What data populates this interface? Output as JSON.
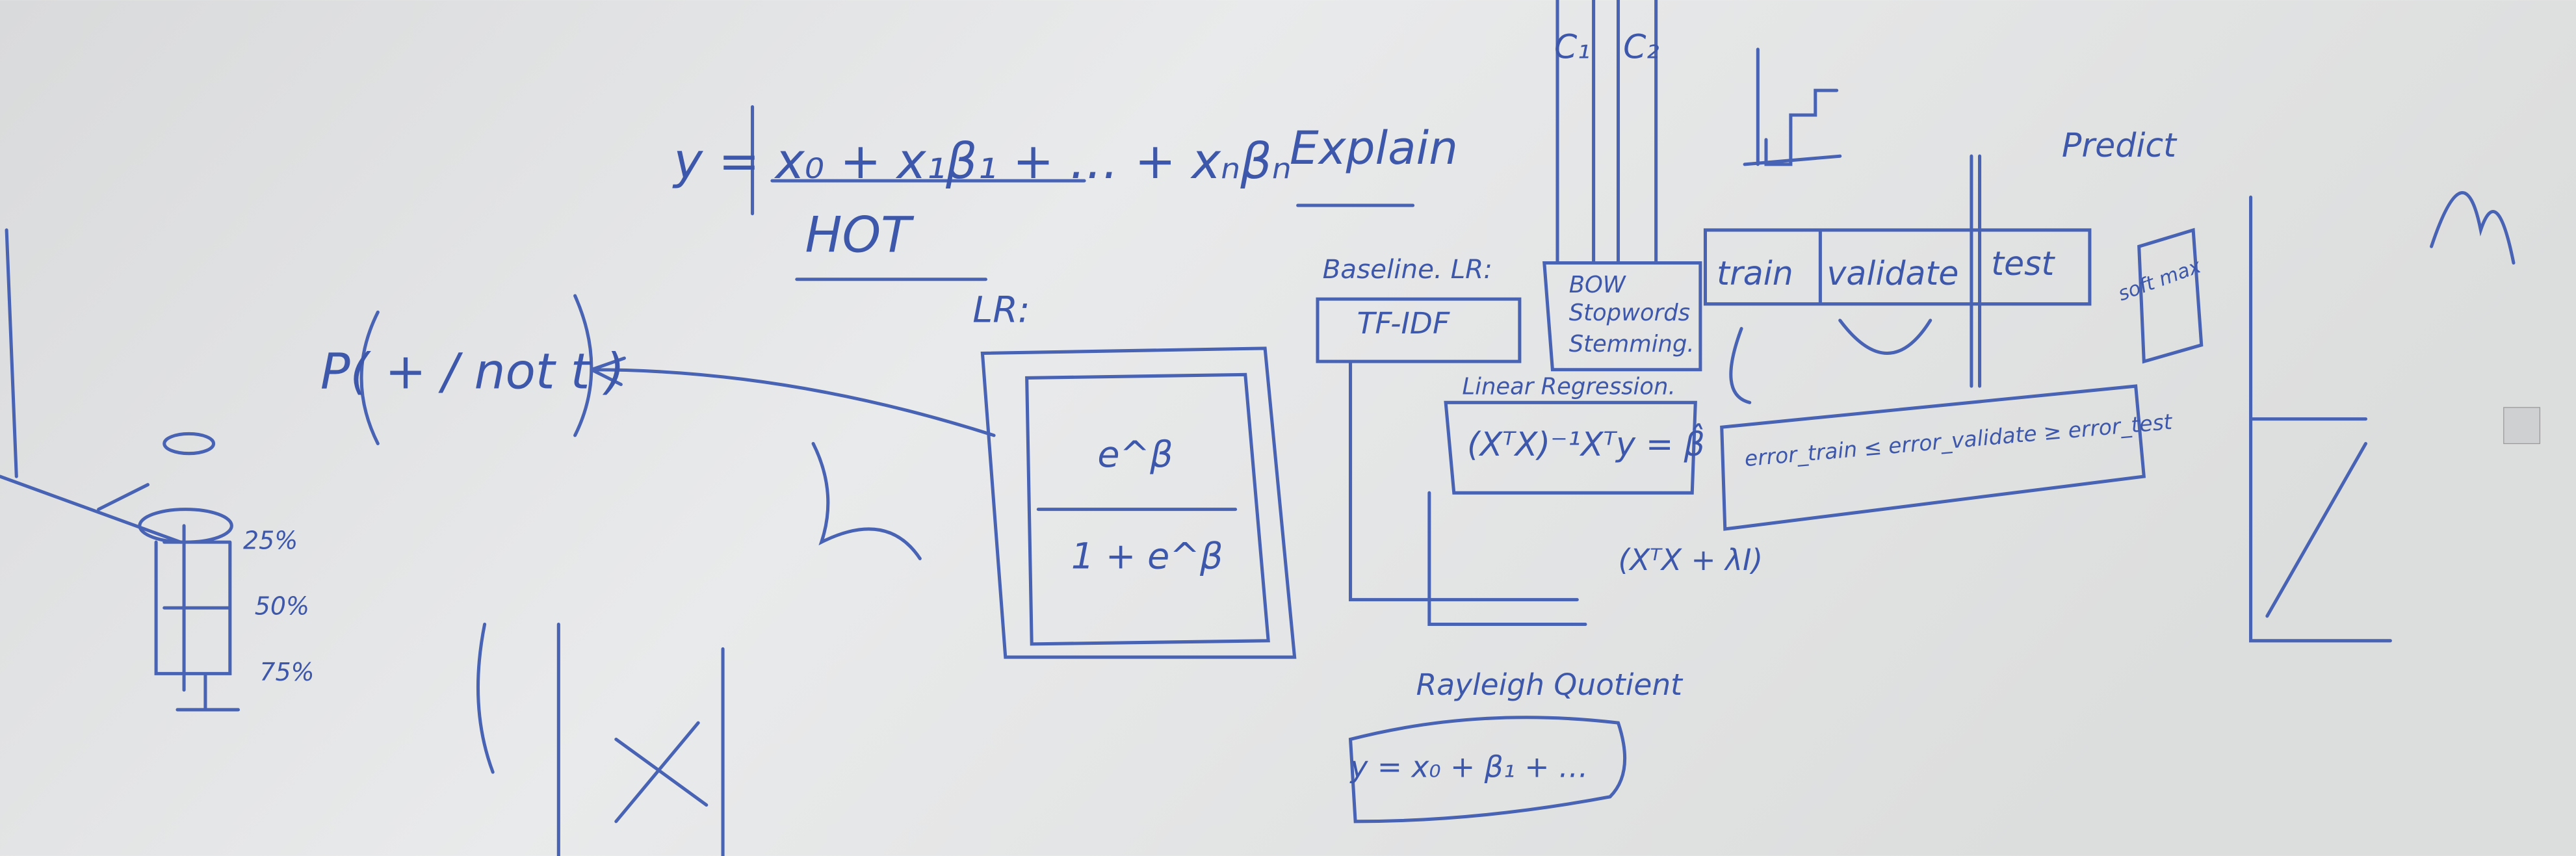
{
  "whiteboard": {
    "regression_formula": "y = x₀ + x₁β₁ + … + xₙβₙ",
    "hot": "HOT",
    "explain": "Explain",
    "lr": "LR:",
    "probability": "P( + / not t )",
    "percentiles": [
      "25%",
      "50%",
      "75%"
    ],
    "sigmoid_top": "e^β",
    "sigmoid_bottom": "1 + e^β",
    "classes": [
      "C₁",
      "C₂"
    ],
    "baseline": "Baseline. LR:",
    "tfidf": "TF-IDF",
    "preprocessing": [
      "BOW",
      "Stopwords",
      "Stemming."
    ],
    "linear_regression": "Linear Regression.",
    "normal_equation": "(XᵀX)⁻¹Xᵀy = β̂",
    "ridge": "(XᵀX + λI)",
    "splits": [
      "train",
      "validate",
      "test"
    ],
    "error_relation": "error_train ≤ error_validate ≥ error_test",
    "predict": "Predict",
    "softmax": "soft max",
    "rayleigh": "Rayleigh Quotient",
    "short_formula": "y = x₀ + β₁ + …"
  }
}
